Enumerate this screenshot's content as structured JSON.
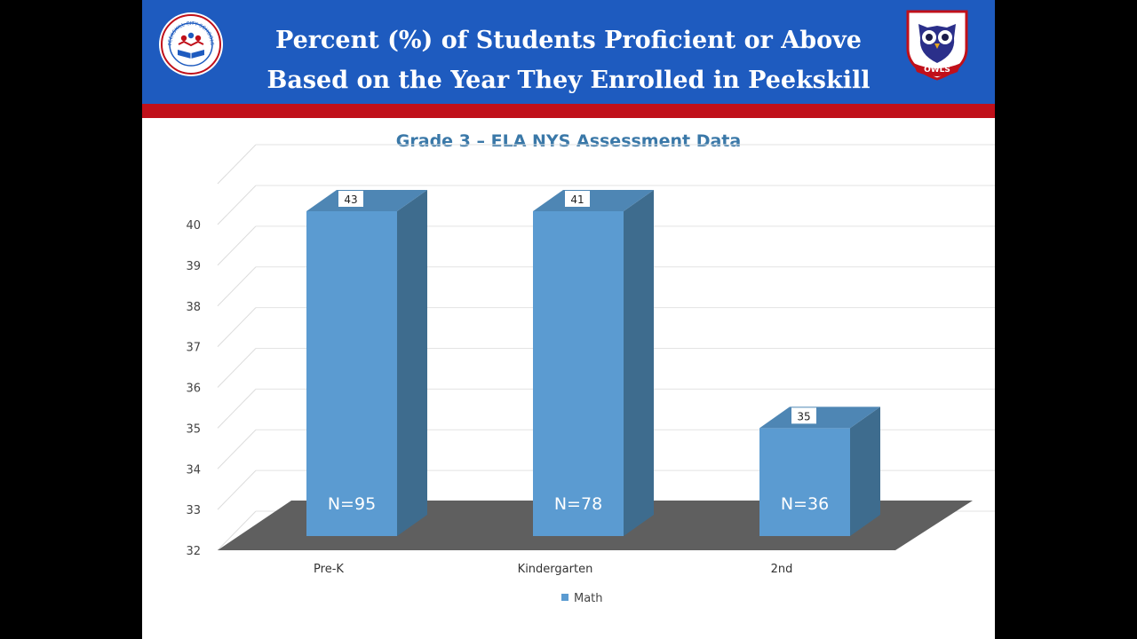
{
  "header": {
    "title_line1": "Percent (%) of Students Proficient or Above",
    "title_line2": "Based on the Year They Enrolled in Peekskill",
    "left_logo_icon": "peekskill-city-schools-seal",
    "left_logo_text": "PEEKSKILL CITY SCHOOLS",
    "right_logo_icon": "owl-mascot",
    "right_logo_text": "OWLS"
  },
  "colors": {
    "header_blue": "#1e5bbf",
    "header_red": "#c0101a",
    "bar_front": "#5b9bd1",
    "bar_side": "#3e6c8e",
    "bar_top": "#4e86b4",
    "floor": "#5f5f5f",
    "title_blue": "#3a78a8"
  },
  "chart_data": {
    "type": "bar",
    "title": "Grade 3 – ELA NYS Assessment Data",
    "categories": [
      "Pre-K",
      "Kindergarten",
      "2nd"
    ],
    "series": [
      {
        "name": "Math",
        "values": [
          43,
          41,
          35
        ],
        "data_labels": [
          "43",
          "41",
          "35"
        ],
        "inner_labels": [
          "N=95",
          "N=78",
          "N=36"
        ]
      }
    ],
    "xlabel": "",
    "ylabel": "",
    "ylim": [
      32,
      40
    ],
    "yticks": [
      "32",
      "33",
      "34",
      "35",
      "36",
      "37",
      "38",
      "39",
      "40"
    ],
    "grid": true,
    "legend": "bottom"
  }
}
